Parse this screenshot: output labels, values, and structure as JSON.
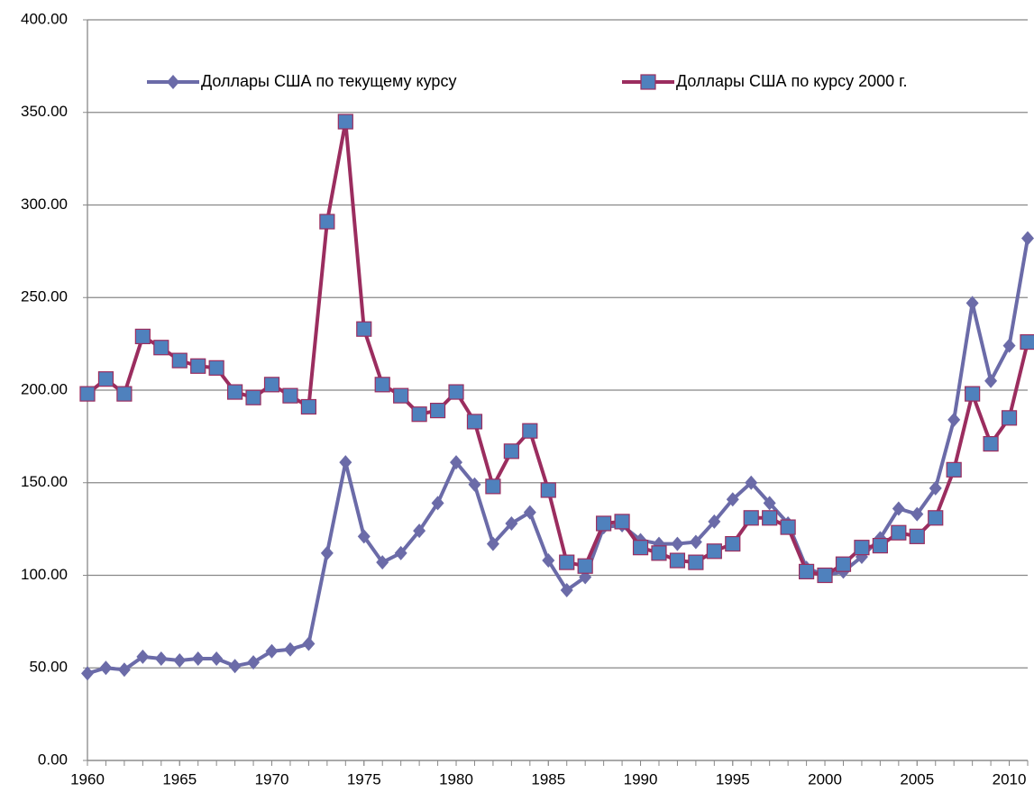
{
  "chart_data": {
    "type": "line",
    "x": [
      1960,
      1961,
      1962,
      1963,
      1964,
      1965,
      1966,
      1967,
      1968,
      1969,
      1970,
      1971,
      1972,
      1973,
      1974,
      1975,
      1976,
      1977,
      1978,
      1979,
      1980,
      1981,
      1982,
      1983,
      1984,
      1985,
      1986,
      1987,
      1988,
      1989,
      1990,
      1991,
      1992,
      1993,
      1994,
      1995,
      1996,
      1997,
      1998,
      1999,
      2000,
      2001,
      2002,
      2003,
      2004,
      2005,
      2006,
      2007,
      2008,
      2009,
      2010,
      2011
    ],
    "series": [
      {
        "name": "Доллары США по текущему курсу",
        "color": "#6b6ba8",
        "marker": "diamond",
        "marker_color": "#6b6ba8",
        "values": [
          47,
          50,
          49,
          56,
          55,
          54,
          55,
          55,
          51,
          53,
          59,
          60,
          63,
          112,
          161,
          121,
          107,
          112,
          124,
          139,
          161,
          149,
          117,
          128,
          134,
          108,
          92,
          99,
          126,
          127,
          119,
          117,
          117,
          118,
          129,
          141,
          150,
          139,
          128,
          104,
          100,
          102,
          110,
          120,
          136,
          133,
          147,
          184,
          247,
          205,
          224,
          282
        ]
      },
      {
        "name": "Доллары США по курсу 2000 г.",
        "color": "#9b2d5f",
        "marker": "square",
        "marker_color": "#4f81bd",
        "values": [
          198,
          206,
          198,
          229,
          223,
          216,
          213,
          212,
          199,
          196,
          203,
          197,
          191,
          291,
          345,
          233,
          203,
          197,
          187,
          189,
          199,
          183,
          148,
          167,
          178,
          146,
          107,
          105,
          128,
          129,
          115,
          112,
          108,
          107,
          113,
          117,
          131,
          131,
          126,
          102,
          100,
          106,
          115,
          116,
          123,
          121,
          131,
          157,
          198,
          171,
          185,
          226
        ]
      }
    ],
    "xlim": [
      1960,
      2011
    ],
    "xticks": [
      1960,
      1965,
      1970,
      1975,
      1980,
      1985,
      1990,
      1995,
      2000,
      2005,
      2010
    ],
    "ylim": [
      0,
      400
    ],
    "yticks": [
      {
        "value": 0,
        "label": "0.00"
      },
      {
        "value": 50,
        "label": "50.00"
      },
      {
        "value": 100,
        "label": "100.00"
      },
      {
        "value": 150,
        "label": "150.00"
      },
      {
        "value": 200,
        "label": "200.00"
      },
      {
        "value": 250,
        "label": "250.00"
      },
      {
        "value": 300,
        "label": "300.00"
      },
      {
        "value": 350,
        "label": "350.00"
      },
      {
        "value": 400,
        "label": "400.00"
      }
    ],
    "grid": true,
    "legend": "top"
  }
}
